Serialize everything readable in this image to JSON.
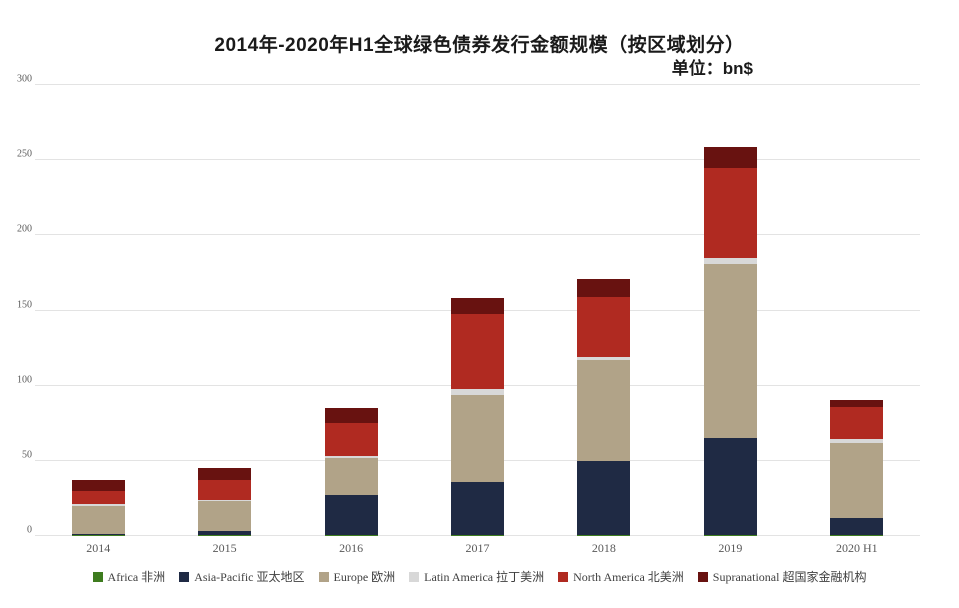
{
  "chart_data": {
    "type": "bar",
    "stacked": true,
    "title": "2014年-2020年H1全球绿色债券发行金额规模（按区域划分）",
    "subtitle": "单位：bn$",
    "categories": [
      "2014",
      "2015",
      "2016",
      "2017",
      "2018",
      "2019",
      "2020 H1"
    ],
    "ylabel": "",
    "xlabel": "",
    "ylim": [
      0,
      300
    ],
    "yticks": [
      0,
      50,
      100,
      150,
      200,
      250,
      300
    ],
    "grid": true,
    "legend_position": "bottom",
    "series": [
      {
        "name": "Africa 非洲",
        "color": "#3e7c1f",
        "values": [
          0.5,
          0.5,
          0.5,
          0.5,
          0.5,
          1,
          0.5
        ]
      },
      {
        "name": "Asia-Pacific 亚太地区",
        "color": "#1f2a44",
        "values": [
          1,
          3,
          26.5,
          35.5,
          49.5,
          64,
          11.5
        ]
      },
      {
        "name": "Europe 欧洲",
        "color": "#b1a388",
        "values": [
          18.5,
          19.5,
          25,
          58,
          67,
          116,
          50
        ]
      },
      {
        "name": "Latin America 拉丁美洲",
        "color": "#d8d8d8",
        "values": [
          1.5,
          1,
          1,
          4,
          2,
          4,
          2.5
        ]
      },
      {
        "name": "North America 北美洲",
        "color": "#b02a21",
        "values": [
          8.5,
          13,
          22,
          50,
          40,
          60,
          21
        ]
      },
      {
        "name": "Supranational 超国家金融机构",
        "color": "#681210",
        "values": [
          7,
          8,
          10,
          10,
          12,
          14,
          5
        ]
      }
    ]
  }
}
